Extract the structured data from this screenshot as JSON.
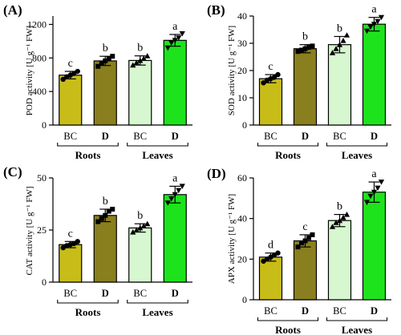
{
  "chart_data": [
    {
      "panel_label": "(A)",
      "type": "bar",
      "ylabel": "POD activity [U g⁻¹ FW]",
      "ylim": [
        0,
        1300
      ],
      "yticks": [
        0,
        400,
        800,
        1200
      ],
      "categories": [
        "BC",
        "D",
        "BC",
        "D"
      ],
      "groups": [
        {
          "label": "Roots",
          "span": [
            0,
            1
          ]
        },
        {
          "label": "Leaves",
          "span": [
            2,
            3
          ]
        }
      ],
      "values": [
        595,
        765,
        770,
        1010
      ],
      "errors": [
        45,
        55,
        55,
        70
      ],
      "letters": [
        "c",
        "b",
        "b",
        "a"
      ],
      "points": [
        [
          545,
          575,
          595,
          615,
          640
        ],
        [
          700,
          740,
          765,
          790,
          820
        ],
        [
          715,
          745,
          770,
          795,
          825
        ],
        [
          920,
          980,
          1010,
          1040,
          1090
        ]
      ]
    },
    {
      "panel_label": "(B)",
      "type": "bar",
      "ylabel": "SOD activity [U g⁻¹ FW]",
      "ylim": [
        0,
        40
      ],
      "yticks": [
        0,
        10,
        20,
        30,
        40
      ],
      "categories": [
        "BC",
        "D",
        "BC",
        "D"
      ],
      "groups": [
        {
          "label": "Roots",
          "span": [
            0,
            1
          ]
        },
        {
          "label": "Leaves",
          "span": [
            2,
            3
          ]
        }
      ],
      "values": [
        17,
        28,
        29.5,
        37
      ],
      "errors": [
        1.5,
        1.5,
        3.0,
        2.5
      ],
      "letters": [
        "c",
        "b",
        "b",
        "a"
      ],
      "points": [
        [
          15.5,
          16.5,
          17,
          17.5,
          18.5
        ],
        [
          27,
          27.5,
          28,
          28.5,
          29
        ],
        [
          26.5,
          28,
          29.5,
          31,
          33
        ],
        [
          34.5,
          36,
          37,
          38,
          39.5
        ]
      ]
    },
    {
      "panel_label": "(C)",
      "type": "bar",
      "ylabel": "CAT activity [U g⁻¹ FW]",
      "ylim": [
        0,
        50
      ],
      "yticks": [
        0,
        25,
        50
      ],
      "categories": [
        "BC",
        "D",
        "BC",
        "D"
      ],
      "groups": [
        {
          "label": "Roots",
          "span": [
            0,
            1
          ]
        },
        {
          "label": "Leaves",
          "span": [
            2,
            3
          ]
        }
      ],
      "values": [
        18,
        32,
        26,
        42
      ],
      "errors": [
        1.5,
        3.0,
        2.0,
        4.0
      ],
      "letters": [
        "c",
        "b",
        "b",
        "a"
      ],
      "points": [
        [
          16.5,
          17.5,
          18,
          18.5,
          19.5
        ],
        [
          29,
          30.5,
          32,
          34,
          35
        ],
        [
          24,
          25,
          26,
          27,
          28
        ],
        [
          38,
          40,
          42,
          44,
          46
        ]
      ]
    },
    {
      "panel_label": "(D)",
      "type": "bar",
      "ylabel": "APX activity [U g⁻¹ FW]",
      "ylim": [
        0,
        60
      ],
      "yticks": [
        0,
        20,
        40,
        60
      ],
      "categories": [
        "BC",
        "D",
        "BC",
        "D"
      ],
      "groups": [
        {
          "label": "Roots",
          "span": [
            0,
            1
          ]
        },
        {
          "label": "Leaves",
          "span": [
            2,
            3
          ]
        }
      ],
      "values": [
        21,
        29,
        39,
        53
      ],
      "errors": [
        2.0,
        3.0,
        3.0,
        5.0
      ],
      "letters": [
        "d",
        "c",
        "b",
        "a"
      ],
      "points": [
        [
          19,
          20,
          21,
          22,
          23
        ],
        [
          26,
          28,
          29,
          30.5,
          32
        ],
        [
          36,
          38,
          39,
          40.5,
          42
        ],
        [
          48,
          51,
          53,
          55,
          58
        ]
      ]
    }
  ],
  "colors": {
    "bars": [
      "#c8bd18",
      "#8a7f1e",
      "#d6f7cf",
      "#1de31d"
    ],
    "stroke": "#000000"
  }
}
